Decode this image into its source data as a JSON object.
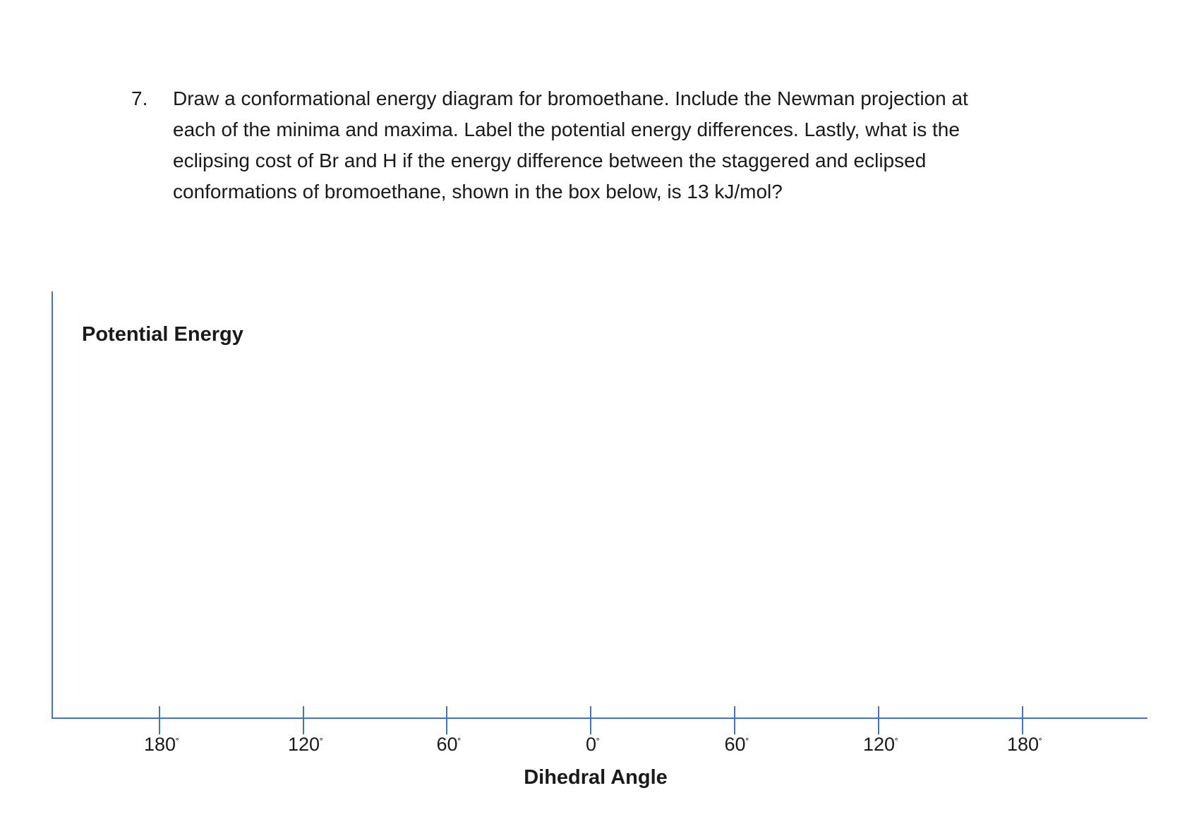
{
  "question": {
    "number": "7.",
    "lines": [
      "Draw a conformational energy diagram for bromoethane.  Include the Newman projection at",
      "each of the minima and maxima.  Label the potential energy differences.  Lastly, what is the",
      "eclipsing cost of Br and H if the energy difference between the staggered and eclipsed",
      "conformations of bromoethane, shown in the box below, is 13 kJ/mol?"
    ]
  },
  "diagram": {
    "ylabel": "Potential Energy",
    "xlabel": "Dihedral Angle",
    "tick_labels": [
      "180",
      "120",
      "60",
      "0",
      "60",
      "120",
      "180"
    ],
    "degree_symbol": "˚",
    "axis_color": "#4472c4"
  }
}
